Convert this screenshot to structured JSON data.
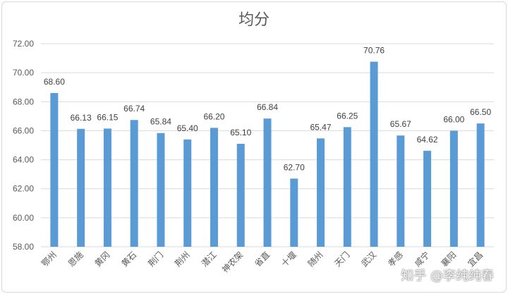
{
  "chart_data": {
    "type": "bar",
    "title": "均分",
    "xlabel": "",
    "ylabel": "",
    "ylim": [
      58,
      72
    ],
    "yticks": [
      "58.00",
      "60.00",
      "62.00",
      "64.00",
      "66.00",
      "68.00",
      "70.00",
      "72.00"
    ],
    "categories": [
      "鄂州",
      "恩施",
      "黄冈",
      "黄石",
      "荆门",
      "荆州",
      "潜江",
      "神农架",
      "省直",
      "十堰",
      "随州",
      "天门",
      "武汉",
      "孝感",
      "咸宁",
      "襄阳",
      "宜昌"
    ],
    "values": [
      68.6,
      66.13,
      66.15,
      66.74,
      65.84,
      65.4,
      66.2,
      65.1,
      66.84,
      62.7,
      65.47,
      66.25,
      70.76,
      65.67,
      64.62,
      66.0,
      66.5
    ],
    "value_labels": [
      "68.60",
      "66.13",
      "66.15",
      "66.74",
      "65.84",
      "65.40",
      "66.20",
      "65.10",
      "66.84",
      "62.70",
      "65.47",
      "66.25",
      "70.76",
      "65.67",
      "64.62",
      "66.00",
      "66.50"
    ],
    "grid": true,
    "legend": "none",
    "bar_color": "#5B9BD5",
    "grid_color": "#d9d9d9"
  },
  "watermark": "知乎 @李纯纯春"
}
